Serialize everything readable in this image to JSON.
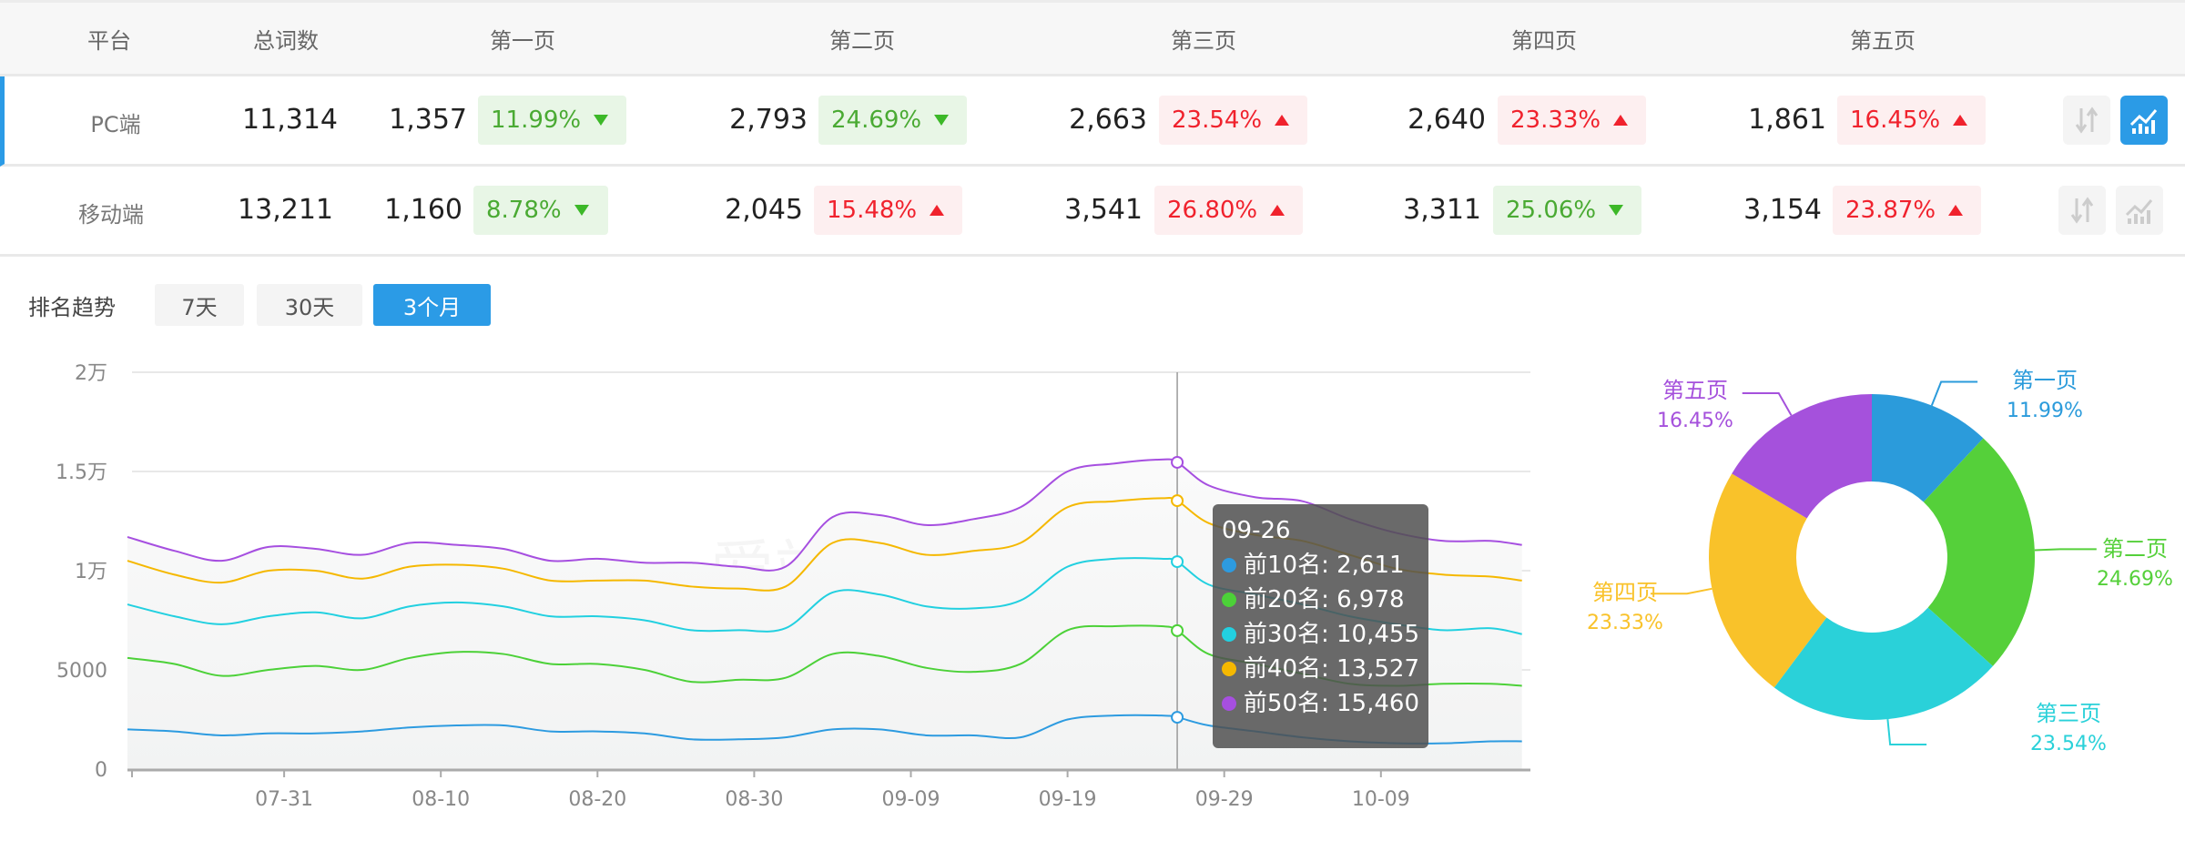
{
  "table": {
    "headers": [
      "平台",
      "总词数",
      "第一页",
      "第二页",
      "第三页",
      "第四页",
      "第五页"
    ],
    "rows": [
      {
        "platform": "PC端",
        "total": "11,314",
        "active": true,
        "pages": [
          {
            "count": "1,357",
            "pct": "11.99%",
            "dir": "down"
          },
          {
            "count": "2,793",
            "pct": "24.69%",
            "dir": "down"
          },
          {
            "count": "2,663",
            "pct": "23.54%",
            "dir": "up"
          },
          {
            "count": "2,640",
            "pct": "23.33%",
            "dir": "up"
          },
          {
            "count": "1,861",
            "pct": "16.45%",
            "dir": "up"
          }
        ]
      },
      {
        "platform": "移动端",
        "total": "13,211",
        "active": false,
        "pages": [
          {
            "count": "1,160",
            "pct": "8.78%",
            "dir": "down"
          },
          {
            "count": "2,045",
            "pct": "15.48%",
            "dir": "up"
          },
          {
            "count": "3,541",
            "pct": "26.80%",
            "dir": "up"
          },
          {
            "count": "3,311",
            "pct": "25.06%",
            "dir": "down"
          },
          {
            "count": "3,154",
            "pct": "23.87%",
            "dir": "up"
          }
        ]
      }
    ],
    "row_icons": [
      "sort-icon",
      "trend-chart-icon"
    ]
  },
  "trend": {
    "label": "排名趋势",
    "ranges": [
      {
        "label": "7天",
        "active": false
      },
      {
        "label": "30天",
        "active": false
      },
      {
        "label": "3个月",
        "active": true
      }
    ],
    "watermark": "爱站网"
  },
  "colors": {
    "accent": "#2b9be6",
    "up": "#f0222d",
    "down": "#3cb828"
  },
  "chart_data": [
    {
      "type": "line",
      "x_tick_labels": [
        "07-31",
        "08-10",
        "08-20",
        "08-30",
        "09-09",
        "09-19",
        "09-29",
        "10-09"
      ],
      "y_tick_labels": [
        "0",
        "5000",
        "1万",
        "1.5万",
        "2万"
      ],
      "ylim": [
        0,
        20000
      ],
      "grid": true,
      "x": [
        "07-21",
        "07-24",
        "07-27",
        "07-30",
        "08-02",
        "08-05",
        "08-08",
        "08-11",
        "08-14",
        "08-17",
        "08-20",
        "08-23",
        "08-26",
        "08-29",
        "09-01",
        "09-04",
        "09-07",
        "09-10",
        "09-13",
        "09-16",
        "09-19",
        "09-22",
        "09-25",
        "09-26",
        "09-28",
        "10-01",
        "10-04",
        "10-07",
        "10-10",
        "10-13",
        "10-16",
        "10-18"
      ],
      "series": [
        {
          "name": "前10名",
          "color": "#2d9be0",
          "values": [
            2000,
            1900,
            1700,
            1800,
            1800,
            1900,
            2100,
            2200,
            2200,
            1900,
            1900,
            1800,
            1500,
            1500,
            1600,
            2000,
            2000,
            1700,
            1700,
            1600,
            2500,
            2700,
            2700,
            2611,
            2200,
            1900,
            1600,
            1400,
            1300,
            1300,
            1400,
            1400
          ]
        },
        {
          "name": "前20名",
          "color": "#4cd138",
          "values": [
            5600,
            5300,
            4700,
            5000,
            5200,
            5000,
            5600,
            5900,
            5800,
            5300,
            5300,
            5000,
            4400,
            4500,
            4600,
            5800,
            5700,
            5100,
            4900,
            5300,
            7000,
            7200,
            7200,
            6978,
            5800,
            5300,
            4800,
            4300,
            4200,
            4300,
            4300,
            4200
          ]
        },
        {
          "name": "前30名",
          "color": "#22d0e0",
          "values": [
            8300,
            7700,
            7300,
            7700,
            7900,
            7600,
            8200,
            8400,
            8200,
            7700,
            7700,
            7500,
            7000,
            7000,
            7100,
            8900,
            8800,
            8200,
            8100,
            8500,
            10200,
            10600,
            10600,
            10455,
            9300,
            8800,
            8300,
            7700,
            7300,
            7000,
            7100,
            6800
          ]
        },
        {
          "name": "前40名",
          "color": "#f5b800",
          "values": [
            10500,
            9800,
            9400,
            10000,
            10000,
            9600,
            10200,
            10300,
            10100,
            9500,
            9500,
            9500,
            9200,
            9100,
            9200,
            11400,
            11400,
            10800,
            11000,
            11400,
            13200,
            13500,
            13650,
            13527,
            12400,
            11800,
            11500,
            10800,
            10100,
            9800,
            9700,
            9500
          ]
        },
        {
          "name": "前50名",
          "color": "#a64fe0",
          "values": [
            11700,
            11000,
            10500,
            11200,
            11100,
            10800,
            11400,
            11300,
            11100,
            10500,
            10600,
            10400,
            10400,
            10200,
            10200,
            12700,
            12800,
            12300,
            12600,
            13200,
            15000,
            15400,
            15600,
            15460,
            14300,
            13700,
            13500,
            12600,
            11900,
            11500,
            11500,
            11300
          ]
        }
      ],
      "tooltip": {
        "date": "09-26",
        "items": [
          {
            "label": "前10名: 2,611",
            "color": "#2d9be0"
          },
          {
            "label": "前20名: 6,978",
            "color": "#4cd138"
          },
          {
            "label": "前30名: 10,455",
            "color": "#22d0e0"
          },
          {
            "label": "前40名: 13,527",
            "color": "#f5b800"
          },
          {
            "label": "前50名: 15,460",
            "color": "#a64fe0"
          }
        ]
      }
    },
    {
      "type": "pie",
      "donut": true,
      "slices": [
        {
          "label": "第一页",
          "pct_label": "11.99%",
          "value": 11.99,
          "color": "#2b9bdb"
        },
        {
          "label": "第二页",
          "pct_label": "24.69%",
          "value": 24.69,
          "color": "#55d03a"
        },
        {
          "label": "第三页",
          "pct_label": "23.54%",
          "value": 23.54,
          "color": "#2ad1d9"
        },
        {
          "label": "第四页",
          "pct_label": "23.33%",
          "value": 23.33,
          "color": "#f9c22a"
        },
        {
          "label": "第五页",
          "pct_label": "16.45%",
          "value": 16.45,
          "color": "#a551dc"
        }
      ]
    }
  ]
}
